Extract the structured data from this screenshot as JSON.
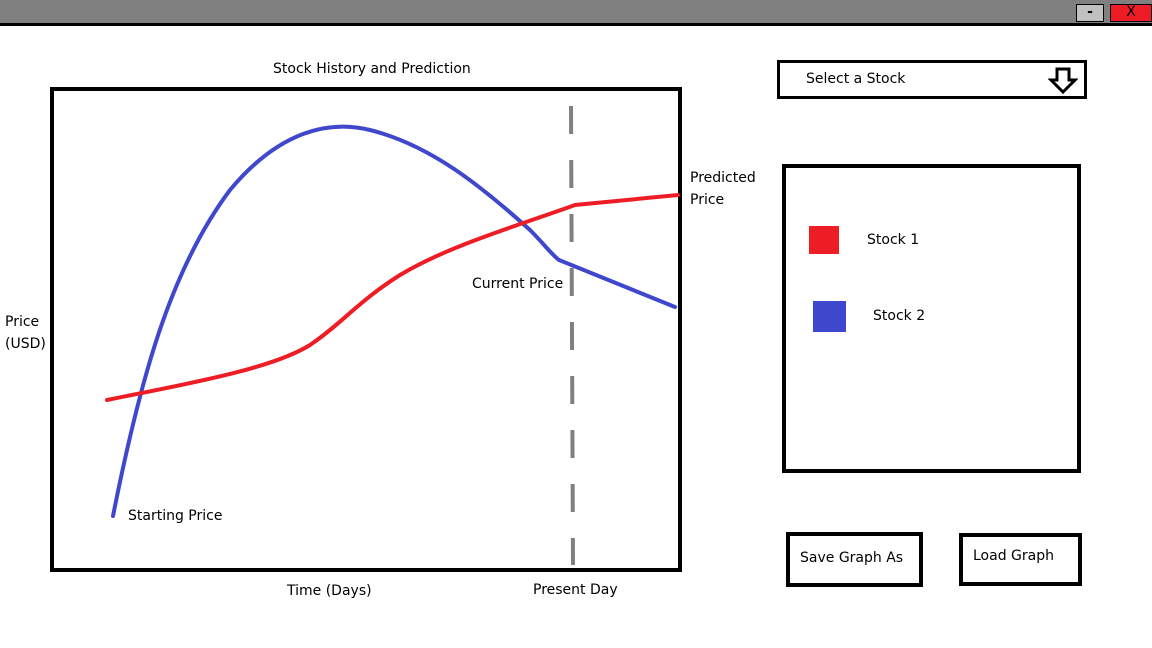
{
  "window": {
    "minimize_label": "-",
    "close_label": "X"
  },
  "chart": {
    "title": "Stock History and Prediction",
    "xlabel": "Time (Days)",
    "ylabel_line1": "Price",
    "ylabel_line2": "(USD)",
    "present_day_label": "Present Day",
    "annotations": {
      "starting_price": "Starting Price",
      "current_price": "Current Price",
      "predicted_line1": "Predicted",
      "predicted_line2": "Price"
    }
  },
  "chart_data": {
    "type": "line",
    "title": "Stock History and Prediction",
    "xlabel": "Time (Days)",
    "ylabel": "Price (USD)",
    "marker": "Present Day",
    "series": [
      {
        "name": "Stock 1",
        "color": "#ee1c24"
      },
      {
        "name": "Stock 2",
        "color": "#3f48cc"
      }
    ]
  },
  "selector": {
    "label": "Select a Stock",
    "icon": "down-arrow-icon"
  },
  "legend": {
    "items": [
      {
        "label": "Stock 1",
        "color": "#ee1c24"
      },
      {
        "label": "Stock 2",
        "color": "#3f48cc"
      }
    ]
  },
  "buttons": {
    "save_label": "Save Graph As",
    "load_label": "Load Graph"
  }
}
